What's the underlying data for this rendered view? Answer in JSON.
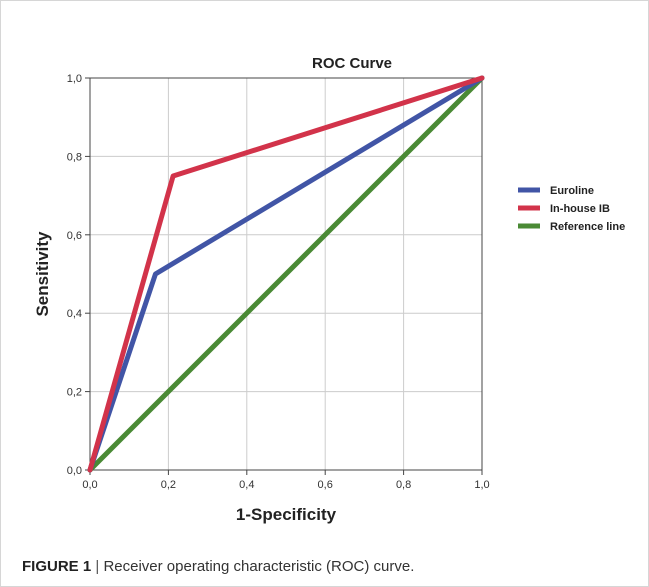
{
  "chart_data": {
    "type": "line",
    "title": "ROC Curve",
    "xlabel": "1-Specificity",
    "ylabel": "Sensitivity",
    "xlim": [
      0,
      1
    ],
    "ylim": [
      0,
      1
    ],
    "x_ticks": [
      0.0,
      0.2,
      0.4,
      0.6,
      0.8,
      1.0
    ],
    "y_ticks": [
      0.0,
      0.2,
      0.4,
      0.6,
      0.8,
      1.0
    ],
    "x_tick_labels": [
      "0,0",
      "0,2",
      "0,4",
      "0,6",
      "0,8",
      "1,0"
    ],
    "y_tick_labels": [
      "0,0",
      "0,2",
      "0,4",
      "0,6",
      "0,8",
      "1,0"
    ],
    "grid": true,
    "legend_position": "right",
    "series": [
      {
        "name": "Euroline",
        "color": "#4155a6",
        "x": [
          0.0,
          0.167,
          1.0
        ],
        "y": [
          0.0,
          0.5,
          1.0
        ]
      },
      {
        "name": "In-house IB",
        "color": "#d2334a",
        "x": [
          0.0,
          0.212,
          1.0
        ],
        "y": [
          0.0,
          0.75,
          1.0
        ]
      },
      {
        "name": "Reference line",
        "color": "#4a8a35",
        "x": [
          0.0,
          1.0
        ],
        "y": [
          0.0,
          1.0
        ]
      }
    ]
  },
  "caption": {
    "figure_number": "FIGURE 1",
    "separator": "|",
    "text": "Receiver operating characteristic (ROC) curve."
  }
}
